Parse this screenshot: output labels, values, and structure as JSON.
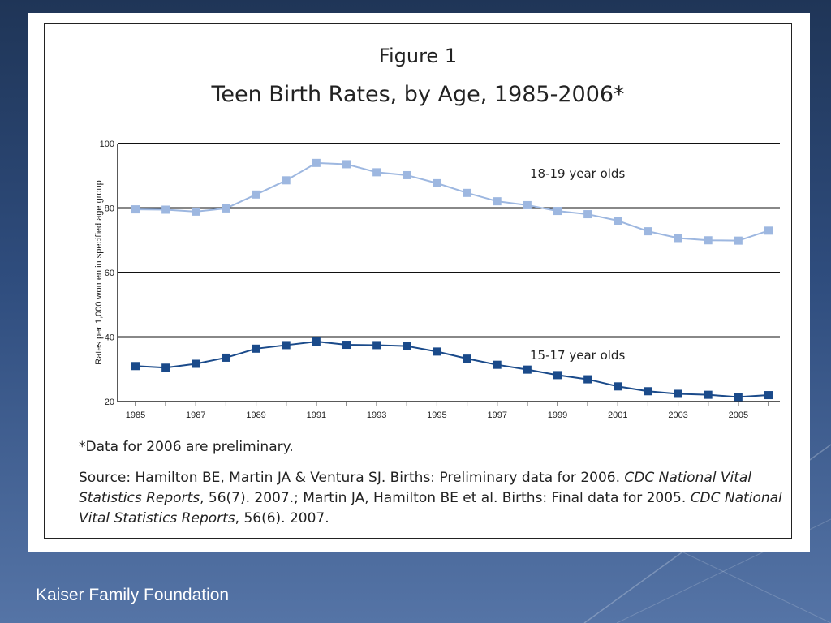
{
  "figure": {
    "label": "Figure 1",
    "title": "Teen Birth Rates, by Age, 1985-2006*"
  },
  "footnote": "*Data for 2006 are preliminary.",
  "source": {
    "part1": "Source: Hamilton BE, Martin JA & Ventura SJ. Births: Preliminary data for 2006. ",
    "journal1": "CDC National Vital Statistics Reports",
    "part2": ", 56(7). 2007.; Martin JA, Hamilton BE et al. Births: Final data for 2005. ",
    "journal2": "CDC National Vital Statistics Reports",
    "part3": ", 56(6). 2007."
  },
  "footer": "Kaiser Family Foundation",
  "chart_data": {
    "type": "line",
    "ylabel": "Rates per 1,000 women in specified age group",
    "ylim": [
      20,
      100
    ],
    "yticks": [
      20,
      40,
      60,
      80,
      100
    ],
    "x": [
      1985,
      1986,
      1987,
      1988,
      1989,
      1990,
      1991,
      1992,
      1993,
      1994,
      1995,
      1996,
      1997,
      1998,
      1999,
      2000,
      2001,
      2002,
      2003,
      2004,
      2005,
      2006
    ],
    "xtick_labels": [
      "1985",
      "1987",
      "1989",
      "1991",
      "1993",
      "1995",
      "1997",
      "1999",
      "2001",
      "2003",
      "2005"
    ],
    "series": [
      {
        "name": "18-19 year olds",
        "color": "#9db7e0",
        "values": [
          79.6,
          79.5,
          78.9,
          79.9,
          84.2,
          88.6,
          94.0,
          93.6,
          91.1,
          90.2,
          87.7,
          84.7,
          82.1,
          80.9,
          79.1,
          78.1,
          76.1,
          72.8,
          70.7,
          70.0,
          69.9,
          73.0
        ]
      },
      {
        "name": "15-17 year olds",
        "color": "#1a4a8a",
        "values": [
          31.0,
          30.5,
          31.7,
          33.6,
          36.4,
          37.5,
          38.6,
          37.6,
          37.5,
          37.2,
          35.5,
          33.3,
          31.4,
          29.9,
          28.2,
          26.9,
          24.7,
          23.2,
          22.4,
          22.1,
          21.4,
          22.0
        ]
      }
    ],
    "grid": true
  }
}
